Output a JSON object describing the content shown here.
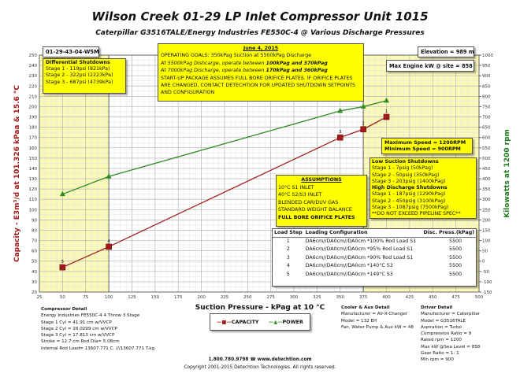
{
  "title": "Wilson Creek 01-29 LP Inlet Compressor Unit 1015",
  "subtitle": "Caterpillar G3516TALE/Energy Industries FE550C-4 @ Various Discharge Pressures",
  "location": "01-29-43-04-W5M",
  "differential": {
    "title": "Differential Shutdowns",
    "lines": [
      "Stage 1 - 119psi (821kPa)",
      "Stage 2 - 322psi (2223kPa)",
      "Stage 3 - 687psi (4739kPa)"
    ]
  },
  "goals": {
    "date": "June 4, 2015",
    "line1": "OPERATING GOALS: 350kPag Suction at 5500kPag Discharge",
    "line2a": "At 5500kPag Dishcarge, operate between ",
    "line2b": "100kPag and 370kPag",
    "line3a": "At 7000kPag Discharge, operate between ",
    "line3b": "170kPag and 360kPag",
    "line4": "START-UP PACKAGE ASSUMES FULL BORE ORIFICE PLATES. IF ORIFICE PLATES ARE CHANGED, CONTACT DETECHTION FOR UPDATED SHUTDOWN SETPOINTS AND CONFIGURATION"
  },
  "elevation": "Elevation = 989 m",
  "max_engine": "Max Engine kW @ site = 858",
  "speed": {
    "max": "Maximum Speed = 1200RPM",
    "min": "Minimum Speed = 900RPM"
  },
  "shutdowns": {
    "low_title": "Low Suction Shutdowns",
    "low": [
      "Stage 1 - 7psig (50kPag)",
      "Stage 2 - 50psig (350kPag)",
      "Stage 3 - 203psig (1400kPag)"
    ],
    "high_title": "High Discharge Shutdowns",
    "high": [
      "Stage 1 - 187psig (1290kPag)",
      "Stage 2 - 450psig (3100kPag)",
      "Stage 3 - 1087psig (7500kPag)"
    ],
    "note": "**DO NOT EXCEED PIPELINE SPEC**"
  },
  "assumptions": {
    "title": "ASSUMPTIONS",
    "lines": [
      "10°C S1 INLET",
      "40°C S2/S3 INLET",
      "BLENDED CAR/DUV GAS",
      "STANDARD WEIGHT BALANCE"
    ],
    "bold": "FULL BORE ORIFICE PLATES"
  },
  "load_table": {
    "headers": [
      "Load Step",
      "Loading Configuration",
      "Disc. Press.(kPag)"
    ],
    "rows": [
      [
        "1",
        "DA6cm//DA0cm//DA0cm *100% Rod Load S1",
        "5500"
      ],
      [
        "2",
        "DA6cm//DA0cm//DA0cm *95% Rod Load S1",
        "5500"
      ],
      [
        "3",
        "DA6cm//DA0cm//DA0cm *90% Rod Load S1",
        "5500"
      ],
      [
        "4",
        "DA6cm//DA0cm//DA0cm *140°C S3",
        "5500"
      ],
      [
        "5",
        "DA6cm//DA0cm//DA0cm *149°C S3",
        "5500"
      ]
    ]
  },
  "compressor_detail": {
    "title": "Compressor Detail",
    "lines": [
      "Energy Industries FE550C-4  4 Throw  3 Stage",
      "Stage 1 Cyl = 41.91 cm    w/VVCP",
      "Stage 2 Cyl = 26.0299 cm w/VVCP",
      "Stage 3 Cyl = 17.813 cm  w/VVCP",
      "Stroke = 12.7 cm Rod Dia= 5.08cm",
      "Internal Rod Load= 13607.771 C. ///13607.771 T.kg"
    ]
  },
  "cooler_detail": {
    "title": "Cooler & Aux Detail",
    "lines": [
      "Manufacturer = Air-X-Changer",
      "Model = 132 EH",
      "Fan, Water Pump & Aux kW = 48"
    ]
  },
  "driver_detail": {
    "title": "Driver Detail",
    "lines": [
      "Manufacturer = Caterpillar",
      "Model = G3516TALE",
      "Aspiration = Turbo",
      "Compression Ratio = 9",
      "Rated rpm = 1200",
      "Max kW @Sea Level = 858",
      "Gear Ratio = 1: 1",
      "Min rpm = 900"
    ]
  },
  "footer": {
    "contact": "1.800.780.9798 ☎ www.detechtion.com",
    "copyright": "Copyright 2001-2015 Detechtion Technologies. All rights reserved."
  },
  "chart_data": {
    "type": "line",
    "xlabel": "Suction Pressure - kPag at 10 °C",
    "ylabel": "Capacity - E3m³/d at 101.326 kPaa & 15.6 °C",
    "y2label": "Kilowatts at 1200 rpm",
    "xlim": [
      25,
      500
    ],
    "ylim": [
      20,
      250
    ],
    "y2lim": [
      -150,
      1000
    ],
    "xticks": [
      25,
      50,
      75,
      100,
      125,
      150,
      175,
      200,
      225,
      250,
      275,
      300,
      325,
      350,
      375,
      400,
      425,
      450,
      475,
      500
    ],
    "yticks": [
      20,
      30,
      40,
      50,
      60,
      70,
      80,
      90,
      100,
      110,
      120,
      130,
      140,
      150,
      160,
      170,
      180,
      190,
      200,
      210,
      220,
      230,
      240,
      250
    ],
    "y2ticks": [
      -150,
      -100,
      -50,
      0,
      50,
      100,
      150,
      200,
      250,
      300,
      350,
      400,
      450,
      500,
      550,
      600,
      650,
      700,
      750,
      800,
      850,
      900,
      950,
      1000
    ],
    "shaded_ranges": [
      [
        25,
        100
      ],
      [
        375,
        500
      ]
    ],
    "shade_color": "#fbf9b8",
    "grid": true,
    "legend_position": "bottom-center",
    "series": [
      {
        "name": "CAPACITY",
        "axis": "left",
        "color": "#a31b1b",
        "marker": "square",
        "labels": [
          "5",
          "4",
          "3",
          "2",
          "1"
        ],
        "x": [
          50,
          100,
          350,
          375,
          400
        ],
        "y": [
          44,
          64,
          170,
          178,
          190
        ]
      },
      {
        "name": "POWER",
        "axis": "right",
        "color": "#2e8b22",
        "marker": "triangle",
        "x": [
          50,
          100,
          350,
          375,
          400
        ],
        "y": [
          325,
          411,
          729,
          750,
          779
        ]
      }
    ]
  }
}
